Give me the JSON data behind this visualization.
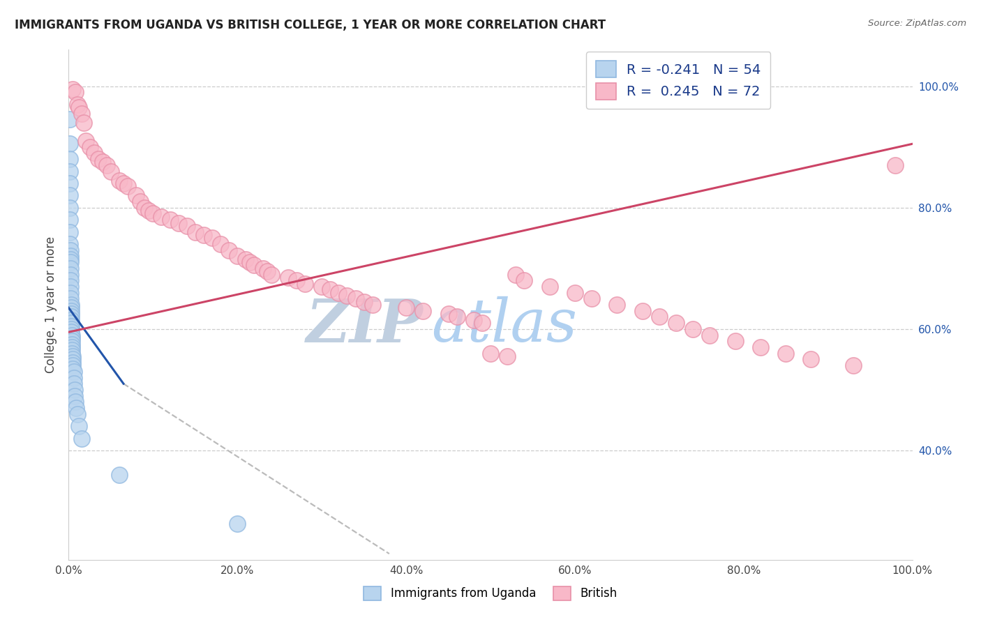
{
  "title": "IMMIGRANTS FROM UGANDA VS BRITISH COLLEGE, 1 YEAR OR MORE CORRELATION CHART",
  "source": "Source: ZipAtlas.com",
  "ylabel": "College, 1 year or more",
  "xlim": [
    0.0,
    1.0
  ],
  "ylim": [
    0.22,
    1.06
  ],
  "xtick_vals": [
    0.0,
    0.2,
    0.4,
    0.6,
    0.8,
    1.0
  ],
  "xtick_labels": [
    "0.0%",
    "20.0%",
    "40.0%",
    "60.0%",
    "80.0%",
    "100.0%"
  ],
  "ytick_vals": [
    0.4,
    0.6,
    0.8,
    1.0
  ],
  "ytick_labels_right": [
    "40.0%",
    "60.0%",
    "80.0%",
    "100.0%"
  ],
  "legend_r1_val": "-0.241",
  "legend_n1_val": "54",
  "legend_r2_val": "0.245",
  "legend_n2_val": "72",
  "blue_color_face": "#b8d4ee",
  "blue_color_edge": "#90b8e0",
  "pink_color_face": "#f8b8c8",
  "pink_color_edge": "#e890a8",
  "blue_line_color": "#2255aa",
  "pink_line_color": "#cc4466",
  "dashed_line_color": "#bbbbbb",
  "watermark_zip_color": "#c8d8e8",
  "watermark_atlas_color": "#b0c8e0",
  "blue_R": -0.241,
  "pink_R": 0.245,
  "blue_N": 54,
  "pink_N": 72,
  "legend_text_color": "#1a3a8a",
  "title_color": "#222222",
  "source_color": "#666666",
  "grid_color": "#cccccc",
  "tick_label_color_x": "#444444",
  "tick_label_color_y_right": "#2255aa",
  "blue_scatter_x": [
    0.001,
    0.001,
    0.001,
    0.001,
    0.001,
    0.001,
    0.001,
    0.001,
    0.001,
    0.001,
    0.002,
    0.002,
    0.002,
    0.002,
    0.002,
    0.002,
    0.002,
    0.002,
    0.002,
    0.002,
    0.003,
    0.003,
    0.003,
    0.003,
    0.003,
    0.003,
    0.003,
    0.003,
    0.003,
    0.003,
    0.004,
    0.004,
    0.004,
    0.004,
    0.004,
    0.004,
    0.004,
    0.005,
    0.005,
    0.005,
    0.005,
    0.005,
    0.006,
    0.006,
    0.006,
    0.007,
    0.007,
    0.008,
    0.009,
    0.01,
    0.012,
    0.015,
    0.06,
    0.2
  ],
  "blue_scatter_y": [
    0.945,
    0.905,
    0.88,
    0.86,
    0.84,
    0.82,
    0.8,
    0.78,
    0.76,
    0.74,
    0.73,
    0.72,
    0.715,
    0.71,
    0.7,
    0.69,
    0.68,
    0.67,
    0.66,
    0.65,
    0.64,
    0.635,
    0.63,
    0.625,
    0.62,
    0.615,
    0.61,
    0.605,
    0.6,
    0.595,
    0.59,
    0.585,
    0.58,
    0.575,
    0.57,
    0.565,
    0.56,
    0.555,
    0.55,
    0.545,
    0.54,
    0.535,
    0.53,
    0.52,
    0.51,
    0.5,
    0.49,
    0.48,
    0.47,
    0.46,
    0.44,
    0.42,
    0.36,
    0.28
  ],
  "pink_scatter_x": [
    0.005,
    0.008,
    0.01,
    0.012,
    0.015,
    0.018,
    0.02,
    0.025,
    0.03,
    0.035,
    0.04,
    0.045,
    0.05,
    0.06,
    0.065,
    0.07,
    0.08,
    0.085,
    0.09,
    0.095,
    0.1,
    0.11,
    0.12,
    0.13,
    0.14,
    0.15,
    0.16,
    0.17,
    0.18,
    0.19,
    0.2,
    0.21,
    0.215,
    0.22,
    0.23,
    0.235,
    0.24,
    0.26,
    0.27,
    0.28,
    0.3,
    0.31,
    0.32,
    0.33,
    0.34,
    0.35,
    0.36,
    0.4,
    0.42,
    0.45,
    0.46,
    0.48,
    0.49,
    0.5,
    0.52,
    0.53,
    0.54,
    0.57,
    0.6,
    0.62,
    0.65,
    0.68,
    0.7,
    0.72,
    0.74,
    0.76,
    0.79,
    0.82,
    0.85,
    0.88,
    0.93,
    0.98
  ],
  "pink_scatter_y": [
    0.995,
    0.99,
    0.97,
    0.965,
    0.955,
    0.94,
    0.91,
    0.9,
    0.89,
    0.88,
    0.875,
    0.87,
    0.86,
    0.845,
    0.84,
    0.835,
    0.82,
    0.81,
    0.8,
    0.795,
    0.79,
    0.785,
    0.78,
    0.775,
    0.77,
    0.76,
    0.755,
    0.75,
    0.74,
    0.73,
    0.72,
    0.715,
    0.71,
    0.705,
    0.7,
    0.695,
    0.69,
    0.685,
    0.68,
    0.675,
    0.67,
    0.665,
    0.66,
    0.655,
    0.65,
    0.645,
    0.64,
    0.635,
    0.63,
    0.625,
    0.62,
    0.615,
    0.61,
    0.56,
    0.555,
    0.69,
    0.68,
    0.67,
    0.66,
    0.65,
    0.64,
    0.63,
    0.62,
    0.61,
    0.6,
    0.59,
    0.58,
    0.57,
    0.56,
    0.55,
    0.54,
    0.87
  ],
  "blue_line_x0": 0.0,
  "blue_line_x_solid_end": 0.065,
  "blue_line_x_dashed_end": 0.38,
  "blue_line_y_start": 0.635,
  "blue_line_y_solid_end": 0.51,
  "blue_line_y_dashed_end": 0.23,
  "pink_line_x0": 0.0,
  "pink_line_x1": 1.0,
  "pink_line_y0": 0.595,
  "pink_line_y1": 0.905
}
